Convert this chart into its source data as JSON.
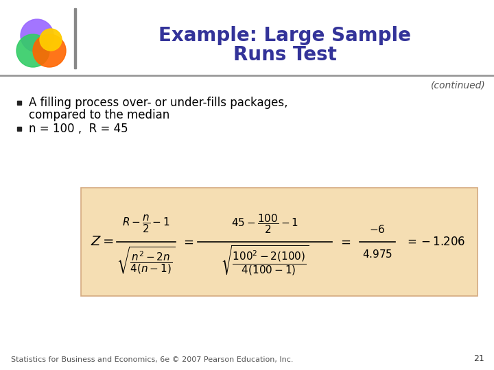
{
  "title_line1": "Example: Large Sample",
  "title_line2": "Runs Test",
  "title_color": "#333399",
  "continued_text": "(continued)",
  "bullet1_line1": "A filling process over- or under-fills packages,",
  "bullet1_line2": "compared to the median",
  "bullet2": "n = 100 ,  R = 45",
  "footer_text": "Statistics for Business and Economics, 6e © 2007 Pearson Education, Inc.",
  "page_number": "21",
  "bg_color": "#ffffff",
  "formula_box_color": "#f5deb3",
  "text_color": "#000000",
  "logo_colors": {
    "purple": "#9966ff",
    "green": "#33cc66",
    "orange": "#ff6600",
    "yellow": "#ffcc00"
  }
}
